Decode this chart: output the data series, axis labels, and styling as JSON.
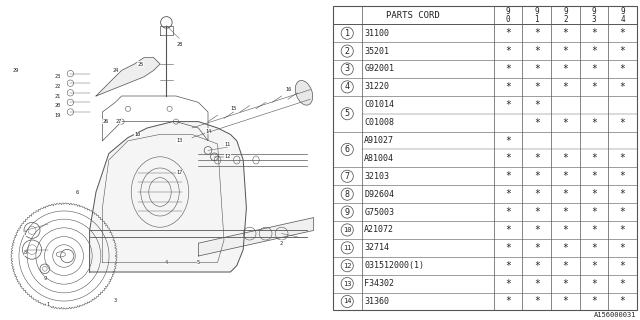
{
  "diagram_id": "A156000031",
  "bg_color": "#ffffff",
  "col_header": "PARTS CORD",
  "year_cols": [
    "9\n0",
    "9\n1",
    "9\n2",
    "9\n3",
    "9\n4"
  ],
  "parts": [
    {
      "num": 1,
      "code": "31100",
      "stars": [
        1,
        1,
        1,
        1,
        1
      ],
      "merged": false,
      "rows": 1
    },
    {
      "num": 2,
      "code": "35201",
      "stars": [
        1,
        1,
        1,
        1,
        1
      ],
      "merged": false,
      "rows": 1
    },
    {
      "num": 3,
      "code": "G92001",
      "stars": [
        1,
        1,
        1,
        1,
        1
      ],
      "merged": false,
      "rows": 1
    },
    {
      "num": 4,
      "code": "31220",
      "stars": [
        1,
        1,
        1,
        1,
        1
      ],
      "merged": false,
      "rows": 1
    },
    {
      "num": 5,
      "code": "C01014",
      "stars": [
        1,
        1,
        0,
        0,
        0
      ],
      "merged": true,
      "rows": 2,
      "code2": "C01008",
      "stars2": [
        0,
        1,
        1,
        1,
        1
      ]
    },
    {
      "num": 6,
      "code": "A91027",
      "stars": [
        1,
        0,
        0,
        0,
        0
      ],
      "merged": true,
      "rows": 2,
      "code2": "A81004",
      "stars2": [
        1,
        1,
        1,
        1,
        1
      ]
    },
    {
      "num": 7,
      "code": "32103",
      "stars": [
        1,
        1,
        1,
        1,
        1
      ],
      "merged": false,
      "rows": 1
    },
    {
      "num": 8,
      "code": "D92604",
      "stars": [
        1,
        1,
        1,
        1,
        1
      ],
      "merged": false,
      "rows": 1
    },
    {
      "num": 9,
      "code": "G75003",
      "stars": [
        1,
        1,
        1,
        1,
        1
      ],
      "merged": false,
      "rows": 1
    },
    {
      "num": 10,
      "code": "A21072",
      "stars": [
        1,
        1,
        1,
        1,
        1
      ],
      "merged": false,
      "rows": 1
    },
    {
      "num": 11,
      "code": "32714",
      "stars": [
        1,
        1,
        1,
        1,
        1
      ],
      "merged": false,
      "rows": 1
    },
    {
      "num": 12,
      "code": "031512000(1)",
      "stars": [
        1,
        1,
        1,
        1,
        1
      ],
      "merged": false,
      "rows": 1
    },
    {
      "num": 13,
      "code": "F34302",
      "stars": [
        1,
        1,
        1,
        1,
        1
      ],
      "merged": false,
      "rows": 1
    },
    {
      "num": 14,
      "code": "31360",
      "stars": [
        1,
        1,
        1,
        1,
        1
      ],
      "merged": false,
      "rows": 1
    }
  ],
  "font_family": "monospace",
  "table_font_size": 6.0,
  "header_font_size": 6.5,
  "line_color": "#555555",
  "text_color": "#222222",
  "star_char": "*",
  "diag_label_fontsize": 3.8
}
